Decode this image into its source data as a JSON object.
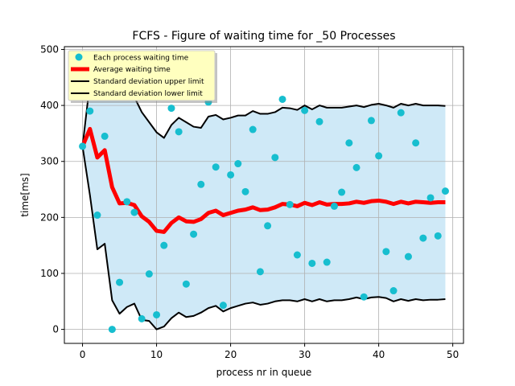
{
  "chart_data": {
    "type": "line",
    "title": "FCFS - Figure of waiting time for _50 Processes",
    "xlabel": "process nr in queue",
    "ylabel": "time[ms]",
    "xlim": [
      -2.45,
      51.45
    ],
    "ylim": [
      -25,
      505
    ],
    "xticks": [
      0,
      10,
      20,
      30,
      40,
      50
    ],
    "yticks": [
      0,
      100,
      200,
      300,
      400,
      500
    ],
    "grid": true,
    "legend_position": "top-left",
    "legend": [
      "Each process waiting time",
      "Average waiting time",
      "Standard deviation upper limit",
      "Standard deviation lower limit"
    ],
    "colors": {
      "points": "#17becf",
      "average": "#ff0000",
      "std_lines": "#000000",
      "fill": "#cfe9f7",
      "grid": "#b0b0b0",
      "legend_bg": "#ffffbf"
    },
    "x": [
      0,
      1,
      2,
      3,
      4,
      5,
      6,
      7,
      8,
      9,
      10,
      11,
      12,
      13,
      14,
      15,
      16,
      17,
      18,
      19,
      20,
      21,
      22,
      23,
      24,
      25,
      26,
      27,
      28,
      29,
      30,
      31,
      32,
      33,
      34,
      35,
      36,
      37,
      38,
      39,
      40,
      41,
      42,
      43,
      44,
      45,
      46,
      47,
      48,
      49
    ],
    "series": [
      {
        "name": "Each process waiting time",
        "values": [
          327,
          390,
          204,
          345,
          0,
          84,
          228,
          209,
          19,
          99,
          26,
          150,
          395,
          353,
          81,
          170,
          259,
          406,
          290,
          43,
          276,
          296,
          246,
          357,
          103,
          185,
          307,
          411,
          223,
          133,
          391,
          118,
          371,
          120,
          220,
          245,
          333,
          289,
          58,
          373,
          310,
          139,
          69,
          387,
          130,
          333,
          163,
          235,
          167,
          247
        ]
      },
      {
        "name": "Average waiting time",
        "values": [
          327,
          358,
          307,
          320,
          254,
          225,
          226,
          222,
          202,
          192,
          176,
          174,
          190,
          200,
          193,
          192,
          197,
          208,
          212,
          204,
          208,
          212,
          214,
          218,
          213,
          214,
          218,
          224,
          223,
          220,
          226,
          222,
          227,
          223,
          224,
          224,
          225,
          228,
          226,
          229,
          230,
          228,
          224,
          228,
          225,
          228,
          227,
          226,
          227,
          227
        ]
      },
      {
        "name": "Standard deviation upper limit",
        "values": [
          327,
          440,
          440,
          440,
          420,
          415,
          420,
          415,
          388,
          370,
          352,
          342,
          365,
          378,
          370,
          362,
          360,
          380,
          383,
          375,
          378,
          382,
          382,
          390,
          385,
          385,
          388,
          396,
          395,
          392,
          400,
          393,
          400,
          396,
          396,
          396,
          398,
          400,
          397,
          401,
          403,
          400,
          396,
          403,
          400,
          403,
          400,
          400,
          400,
          399
        ]
      },
      {
        "name": "Standard deviation lower limit",
        "values": [
          327,
          240,
          143,
          153,
          52,
          28,
          40,
          46,
          17,
          15,
          0,
          5,
          20,
          30,
          22,
          24,
          30,
          38,
          42,
          32,
          38,
          42,
          46,
          48,
          44,
          46,
          50,
          52,
          52,
          50,
          54,
          50,
          54,
          50,
          52,
          52,
          54,
          57,
          54,
          57,
          58,
          56,
          50,
          54,
          51,
          54,
          52,
          53,
          53,
          54
        ]
      }
    ]
  }
}
